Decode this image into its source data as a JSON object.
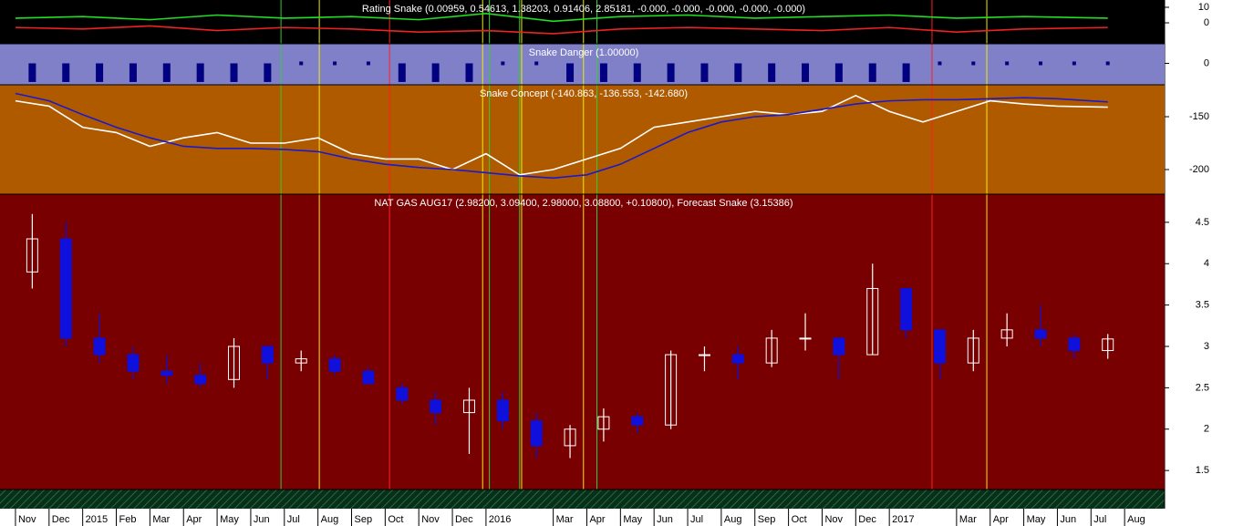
{
  "chart_data": [
    {
      "type": "line",
      "title": "Rating Snake (0.00959, 0.54613, 1.38203, 0.91406, 2.85181, -0.000, -0.000, -0.000, -0.000, -0.000)",
      "background": "#000000",
      "x": [
        0,
        2,
        4,
        6,
        8,
        10,
        12,
        14,
        16,
        18,
        20,
        22,
        24,
        26,
        28,
        30,
        32.5
      ],
      "series": [
        {
          "name": "Rating up",
          "color": "#22dd22",
          "values": [
            3,
            4,
            2,
            5,
            3,
            4,
            2,
            6,
            1,
            4,
            5,
            3,
            4,
            5,
            3,
            4,
            3
          ]
        },
        {
          "name": "Rating down",
          "color": "#ee2222",
          "values": [
            -3,
            -4,
            -2,
            -5,
            -3,
            -4,
            -6,
            -5,
            -7,
            -4,
            -3,
            -4,
            -5,
            -3,
            -6,
            -4,
            -3
          ]
        }
      ],
      "ylim": [
        -13.5,
        14.7
      ],
      "yticks": [
        0,
        10
      ]
    },
    {
      "type": "bar",
      "title": "Snake Danger (1.00000)",
      "background": "#8080c8",
      "color": "#000080",
      "x": [
        0.5,
        1.5,
        2.5,
        3.5,
        4.5,
        5.5,
        6.5,
        7.5,
        8.5,
        9.5,
        10.5,
        11.5,
        12.5,
        13.5,
        14.5,
        15.5,
        16.5,
        17.5,
        18.5,
        19.5,
        20.5,
        21.5,
        22.5,
        23.5,
        24.5,
        25.5,
        26.5,
        27.5,
        28.5,
        29.5,
        30.5,
        31.5,
        32.5
      ],
      "values": [
        -1,
        -1,
        -1,
        -1,
        -1,
        -1,
        -1,
        -1,
        0,
        0,
        0,
        -1,
        -1,
        -1,
        0,
        0,
        -1,
        -1,
        -1,
        -1,
        -1,
        -1,
        -1,
        -1,
        -1,
        -1,
        -1,
        0,
        0,
        0,
        0,
        0,
        0
      ],
      "ylim": [
        -1.15,
        1.05
      ],
      "yticks": [
        0
      ]
    },
    {
      "type": "line",
      "title": "Snake Concept (-140.863, -136.553, -142.680)",
      "background": "#b05a00",
      "x": [
        0,
        1,
        2,
        3,
        4,
        5,
        6,
        7,
        8,
        9,
        10,
        11,
        12,
        13,
        14,
        15,
        16,
        17,
        18,
        19,
        20,
        21,
        22,
        23,
        24,
        25,
        26,
        27,
        28,
        29,
        30,
        31,
        32.5
      ],
      "series": [
        {
          "name": "Concept",
          "color": "#ffffff",
          "values": [
            -135,
            -140,
            -160,
            -165,
            -178,
            -170,
            -165,
            -175,
            -175,
            -170,
            -185,
            -190,
            -190,
            -200,
            -185,
            -205,
            -200,
            -190,
            -180,
            -160,
            -155,
            -150,
            -145,
            -148,
            -145,
            -130,
            -145,
            -155,
            -145,
            -135,
            -138,
            -140,
            -141
          ]
        },
        {
          "name": "Concept average",
          "color": "#1a1acc",
          "values": [
            -128,
            -135,
            -148,
            -160,
            -170,
            -178,
            -180,
            -180,
            -181,
            -183,
            -190,
            -195,
            -198,
            -200,
            -203,
            -206,
            -208,
            -205,
            -195,
            -180,
            -165,
            -155,
            -150,
            -148,
            -143,
            -138,
            -135,
            -134,
            -134,
            -133,
            -132,
            -133,
            -136
          ]
        }
      ],
      "ylim": [
        -223.3,
        -119.8
      ],
      "yticks": [
        -200,
        -150
      ]
    },
    {
      "type": "candlestick",
      "title": "NAT GAS AUG17 (2.98200, 3.09400, 2.98000, 3.08800, +0.10800), Forecast Snake (3.15386)",
      "background": "#780000",
      "up_color": "#ffffff",
      "down_color": "#1010dd",
      "x": [
        0.5,
        1.5,
        2.5,
        3.5,
        4.5,
        5.5,
        6.5,
        7.5,
        8.5,
        9.5,
        10.5,
        11.5,
        12.5,
        13.5,
        14.5,
        15.5,
        16.5,
        17.5,
        18.5,
        19.5,
        20.5,
        21.5,
        22.5,
        23.5,
        24.5,
        25.5,
        26.5,
        27.5,
        28.5,
        29.5,
        30.5,
        31.5,
        32.5
      ],
      "open": [
        3.9,
        4.3,
        3.1,
        2.9,
        2.7,
        2.65,
        2.6,
        3.0,
        2.8,
        2.85,
        2.7,
        2.5,
        2.35,
        2.2,
        2.35,
        2.1,
        1.8,
        2.0,
        2.15,
        2.05,
        2.9,
        2.9,
        2.8,
        3.1,
        3.1,
        2.9,
        3.7,
        3.2,
        2.8,
        3.1,
        3.2,
        3.1,
        2.95
      ],
      "high": [
        4.6,
        4.5,
        3.4,
        3.0,
        2.9,
        2.8,
        3.1,
        3.0,
        2.95,
        2.9,
        2.75,
        2.55,
        2.45,
        2.5,
        2.45,
        2.2,
        2.05,
        2.25,
        2.2,
        2.95,
        3.0,
        3.0,
        3.2,
        3.4,
        3.1,
        4.0,
        3.7,
        3.2,
        3.2,
        3.4,
        3.5,
        3.15,
        3.15
      ],
      "low": [
        3.7,
        3.0,
        2.8,
        2.6,
        2.55,
        2.5,
        2.5,
        2.6,
        2.7,
        2.65,
        2.55,
        2.3,
        2.05,
        1.7,
        2.0,
        1.65,
        1.65,
        1.85,
        1.95,
        2.0,
        2.7,
        2.6,
        2.75,
        2.95,
        2.6,
        2.9,
        3.1,
        2.6,
        2.7,
        3.0,
        3.0,
        2.85,
        2.85
      ],
      "close": [
        4.3,
        3.1,
        2.9,
        2.7,
        2.65,
        2.55,
        3.0,
        2.8,
        2.85,
        2.7,
        2.55,
        2.35,
        2.2,
        2.35,
        2.1,
        1.8,
        2.0,
        2.15,
        2.05,
        2.9,
        2.9,
        2.8,
        3.1,
        3.1,
        2.9,
        3.7,
        3.2,
        2.8,
        3.1,
        3.2,
        3.1,
        2.95,
        3.09
      ],
      "ylim": [
        1.27,
        4.84
      ],
      "yticks": [
        1.5,
        2.0,
        2.5,
        3.0,
        3.5,
        4.0,
        4.5
      ],
      "xlim": [
        -0.46,
        34.19
      ],
      "xticks": [
        {
          "value": 0,
          "label": "Nov"
        },
        {
          "value": 1,
          "label": "Dec"
        },
        {
          "value": 2,
          "label": "2015"
        },
        {
          "value": 3,
          "label": "Feb"
        },
        {
          "value": 4,
          "label": "Mar"
        },
        {
          "value": 5,
          "label": "Apr"
        },
        {
          "value": 6,
          "label": "May"
        },
        {
          "value": 7,
          "label": "Jun"
        },
        {
          "value": 8,
          "label": "Jul"
        },
        {
          "value": 9,
          "label": "Aug"
        },
        {
          "value": 10,
          "label": "Sep"
        },
        {
          "value": 11,
          "label": "Oct"
        },
        {
          "value": 12,
          "label": "Nov"
        },
        {
          "value": 13,
          "label": "Dec"
        },
        {
          "value": 14,
          "label": "2016"
        },
        {
          "value": 16,
          "label": "Mar"
        },
        {
          "value": 17,
          "label": "Apr"
        },
        {
          "value": 18,
          "label": "May"
        },
        {
          "value": 19,
          "label": "Jun"
        },
        {
          "value": 20,
          "label": "Jul"
        },
        {
          "value": 21,
          "label": "Aug"
        },
        {
          "value": 22,
          "label": "Sep"
        },
        {
          "value": 23,
          "label": "Oct"
        },
        {
          "value": 24,
          "label": "Nov"
        },
        {
          "value": 25,
          "label": "Dec"
        },
        {
          "value": 26,
          "label": "2017"
        },
        {
          "value": 28,
          "label": "Mar"
        },
        {
          "value": 29,
          "label": "Apr"
        },
        {
          "value": 30,
          "label": "May"
        },
        {
          "value": 31,
          "label": "Jun"
        },
        {
          "value": 32,
          "label": "Jul"
        },
        {
          "value": 33,
          "label": "Aug"
        }
      ],
      "signals": [
        {
          "x": 7.9,
          "color": "#33cc33"
        },
        {
          "x": 9.04,
          "color": "#eeee00"
        },
        {
          "x": 11.13,
          "color": "#ff2020"
        },
        {
          "x": 13.9,
          "color": "#eeee00"
        },
        {
          "x": 14.1,
          "color": "#33cc33"
        },
        {
          "x": 15.0,
          "color": "#33cc33"
        },
        {
          "x": 15.06,
          "color": "#eeee00"
        },
        {
          "x": 16.9,
          "color": "#eeee00"
        },
        {
          "x": 17.3,
          "color": "#33cc33"
        },
        {
          "x": 27.27,
          "color": "#ff2020"
        },
        {
          "x": 28.9,
          "color": "#eeee00"
        }
      ]
    }
  ]
}
